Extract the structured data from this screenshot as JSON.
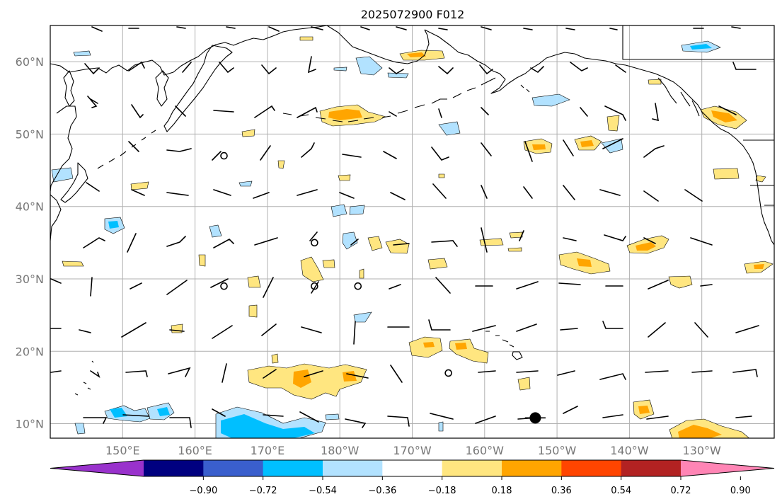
{
  "title": "2025072900 F012",
  "lat_labels": [
    "60°N",
    "50°N",
    "40°N",
    "30°N",
    "20°N",
    "10°N"
  ],
  "lat_values": [
    60,
    50,
    40,
    30,
    20,
    10
  ],
  "lon_labels": [
    "150°E",
    "160°E",
    "170°E",
    "180°W",
    "170°W",
    "160°W",
    "150°W",
    "140°W",
    "130°W"
  ],
  "lon_values": [
    150,
    160,
    170,
    180,
    190,
    200,
    210,
    220,
    230
  ],
  "colorbar": {
    "tick_labels": [
      "−0.90",
      "−0.72",
      "−0.54",
      "−0.36",
      "−0.18",
      "0.18",
      "0.36",
      "0.54",
      "0.72",
      "0.90"
    ],
    "levels": [
      -0.9,
      -0.72,
      -0.54,
      -0.36,
      -0.18,
      0.18,
      0.36,
      0.54,
      0.72,
      0.9
    ],
    "colors": [
      "#9932cc",
      "#000080",
      "#3a5fcd",
      "#00bfff",
      "#b2e2ff",
      "#ffffff",
      "#ffe680",
      "#ffa500",
      "#ff4500",
      "#b22222",
      "#ff85b5"
    ],
    "extend": "both"
  },
  "domain": {
    "lon_range": [
      140,
      240
    ],
    "lat_range": [
      8,
      65
    ]
  },
  "fields": {
    "positive_light": "#ffe680",
    "positive_mid": "#ffa500",
    "negative_light": "#b2e2ff",
    "negative_mid": "#00bfff"
  },
  "calm_markers": [
    {
      "lon": 164,
      "lat": 47
    },
    {
      "lon": 176.5,
      "lat": 35
    },
    {
      "lon": 164,
      "lat": 29
    },
    {
      "lon": 176.5,
      "lat": 29
    },
    {
      "lon": 182.5,
      "lat": 29
    },
    {
      "lon": 195,
      "lat": 17
    }
  ],
  "storm_marker": {
    "lon": 207,
    "lat": 10.8
  }
}
